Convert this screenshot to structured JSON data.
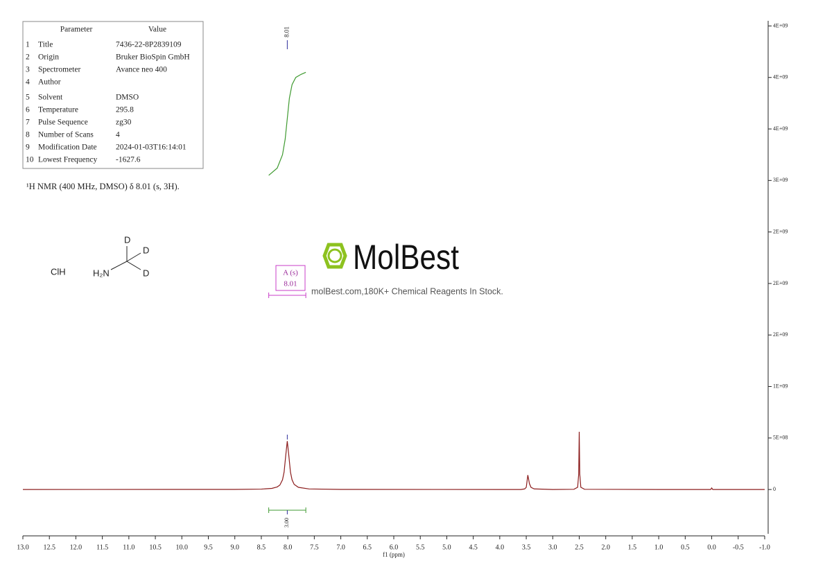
{
  "chart_data": {
    "type": "line",
    "xlabel": "f1 (ppm)",
    "xlim": [
      13,
      -1
    ],
    "ylim": [
      -450000000,
      4550000000
    ],
    "xticks": [
      {
        "value": 13,
        "label": "13.0"
      },
      12.5,
      {
        "value": 12,
        "label": "12.0"
      },
      11.5,
      {
        "value": 11,
        "label": "11.0"
      },
      10.5,
      {
        "value": 10,
        "label": "10.0"
      },
      9.5,
      {
        "value": 9,
        "label": "9.0"
      },
      8.5,
      {
        "value": 8,
        "label": "8.0"
      },
      7.5,
      {
        "value": 7,
        "label": "7.0"
      },
      6.5,
      {
        "value": 6,
        "label": "6.0"
      },
      5.5,
      {
        "value": 5,
        "label": "5.0"
      },
      4.5,
      {
        "value": 4,
        "label": "4.0"
      },
      3.5,
      {
        "value": 3,
        "label": "3.0"
      },
      2.5,
      {
        "value": 2,
        "label": "2.0"
      },
      1.5,
      {
        "value": 1,
        "label": "1.0"
      },
      0.5,
      {
        "value": 0,
        "label": "0.0"
      },
      -0.5,
      {
        "value": -1,
        "label": "-1.0"
      }
    ],
    "yticks": [
      0,
      {
        "value": 500000000,
        "label": "5E+08"
      },
      {
        "value": 1000000000,
        "label": "1E+09"
      },
      {
        "value": 1500000000,
        "label": "2E+09"
      },
      {
        "value": 2000000000,
        "label": "2E+09"
      },
      {
        "value": 2500000000,
        "label": "2E+09"
      },
      {
        "value": 3000000000,
        "label": "3E+09"
      },
      {
        "value": 3500000000,
        "label": "4E+09"
      },
      {
        "value": 4000000000,
        "label": "4E+09"
      },
      {
        "value": 4500000000,
        "label": "4E+09"
      }
    ],
    "series": [
      {
        "color": "#8b1c1c",
        "x": [
          13,
          9,
          8.5,
          8.3,
          8.2,
          8.15,
          8.1,
          8.07,
          8.04,
          8.01,
          7.98,
          7.95,
          7.92,
          7.88,
          7.8,
          7.6,
          7,
          4,
          3.6,
          3.53,
          3.5,
          3.47,
          3.44,
          3.41,
          3.35,
          3,
          2.6,
          2.53,
          2.51,
          2.5,
          2.49,
          2.47,
          2.4,
          1,
          0.02,
          0,
          -0.02,
          -1
        ],
        "values": [
          0,
          1000000,
          4000000,
          11000000,
          25000000,
          43000000,
          94000000,
          169000000,
          325000000,
          470000000,
          325000000,
          169000000,
          94000000,
          50000000,
          21000000,
          5600000,
          1000000,
          0,
          0,
          5800000,
          21000000,
          140000000,
          57000000,
          21000000,
          5800000,
          0,
          2000000,
          22000000,
          150000000,
          560000000,
          150000000,
          22000000,
          2000000,
          0,
          0,
          15000000,
          0,
          0
        ]
      },
      {
        "color": "#3f9a30",
        "x": [
          8.36,
          8.2,
          8.1,
          8.05,
          8.01,
          7.97,
          7.92,
          7.85,
          7.75,
          7.66
        ],
        "values": [
          3050000000,
          3120000000,
          3250000000,
          3400000000,
          3600000000,
          3800000000,
          3930000000,
          4000000000,
          4030000000,
          4050000000
        ]
      }
    ],
    "peak_labels": [
      8.01
    ],
    "integrals": [
      {
        "range": [
          8.36,
          7.66
        ],
        "value": 3,
        "label": "3.00"
      }
    ],
    "multiplets": [
      {
        "name": "A (s)",
        "shift": 8.01,
        "range": [
          8.36,
          7.66
        ]
      }
    ]
  },
  "parameters": {
    "header": [
      "Parameter",
      "Value"
    ],
    "rows": [
      [
        "1",
        "Title",
        "7436-22-8P2839109"
      ],
      [
        "2",
        "Origin",
        "Bruker BioSpin GmbH"
      ],
      [
        "3",
        "Spectrometer",
        "Avance neo 400"
      ],
      [
        "4",
        "Author"
      ],
      [
        "5",
        "Solvent",
        "DMSO"
      ],
      [
        "6",
        "Temperature",
        "295.8"
      ],
      [
        "7",
        "Pulse Sequence",
        "zg30"
      ],
      [
        "8",
        "Number of Scans",
        "4"
      ],
      [
        "9",
        "Modification Date",
        "2024-01-03T16:14:01"
      ],
      [
        "10",
        "Lowest Frequency",
        "-1627.6"
      ]
    ]
  },
  "description": "¹H NMR (400 MHz, DMSO) δ 8.01 (s, 3H).",
  "structure": {
    "salt": "ClH",
    "amine": "H₂N",
    "atoms": [
      "D",
      "D",
      "D"
    ]
  },
  "watermark": {
    "brand": "MolBest",
    "tagline": "molBest.com,180K+ Chemical Reagents In Stock."
  }
}
